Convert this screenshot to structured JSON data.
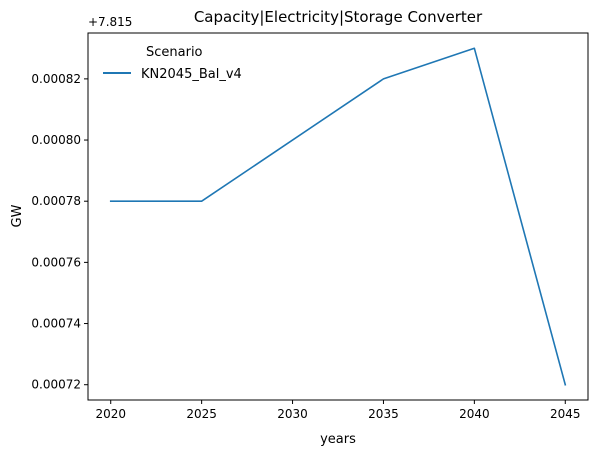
{
  "chart_data": {
    "type": "line",
    "title": "Capacity|Electricity|Storage Converter",
    "xlabel": "years",
    "ylabel": "GW",
    "offset_label": "+7.815",
    "x": [
      2020,
      2025,
      2030,
      2035,
      2040,
      2045
    ],
    "x_ticks": [
      "2020",
      "2025",
      "2030",
      "2035",
      "2040",
      "2045"
    ],
    "y_ticks": [
      "0.00072",
      "0.00074",
      "0.00076",
      "0.00078",
      "0.00080",
      "0.00082"
    ],
    "y_tick_values": [
      0.00072,
      0.00074,
      0.00076,
      0.00078,
      0.0008,
      0.00082
    ],
    "xlim": [
      2018.75,
      2046.25
    ],
    "ylim": [
      0.000715,
      0.000835
    ],
    "grid": false,
    "legend": {
      "title": "Scenario",
      "placement": "top-left"
    },
    "series": [
      {
        "name": "KN2045_Bal_v4",
        "color": "#1f77b4",
        "x": [
          2020,
          2025,
          2035,
          2040,
          2045
        ],
        "values": [
          0.00078,
          0.00078,
          0.00082,
          0.00083,
          0.00072
        ]
      }
    ]
  }
}
